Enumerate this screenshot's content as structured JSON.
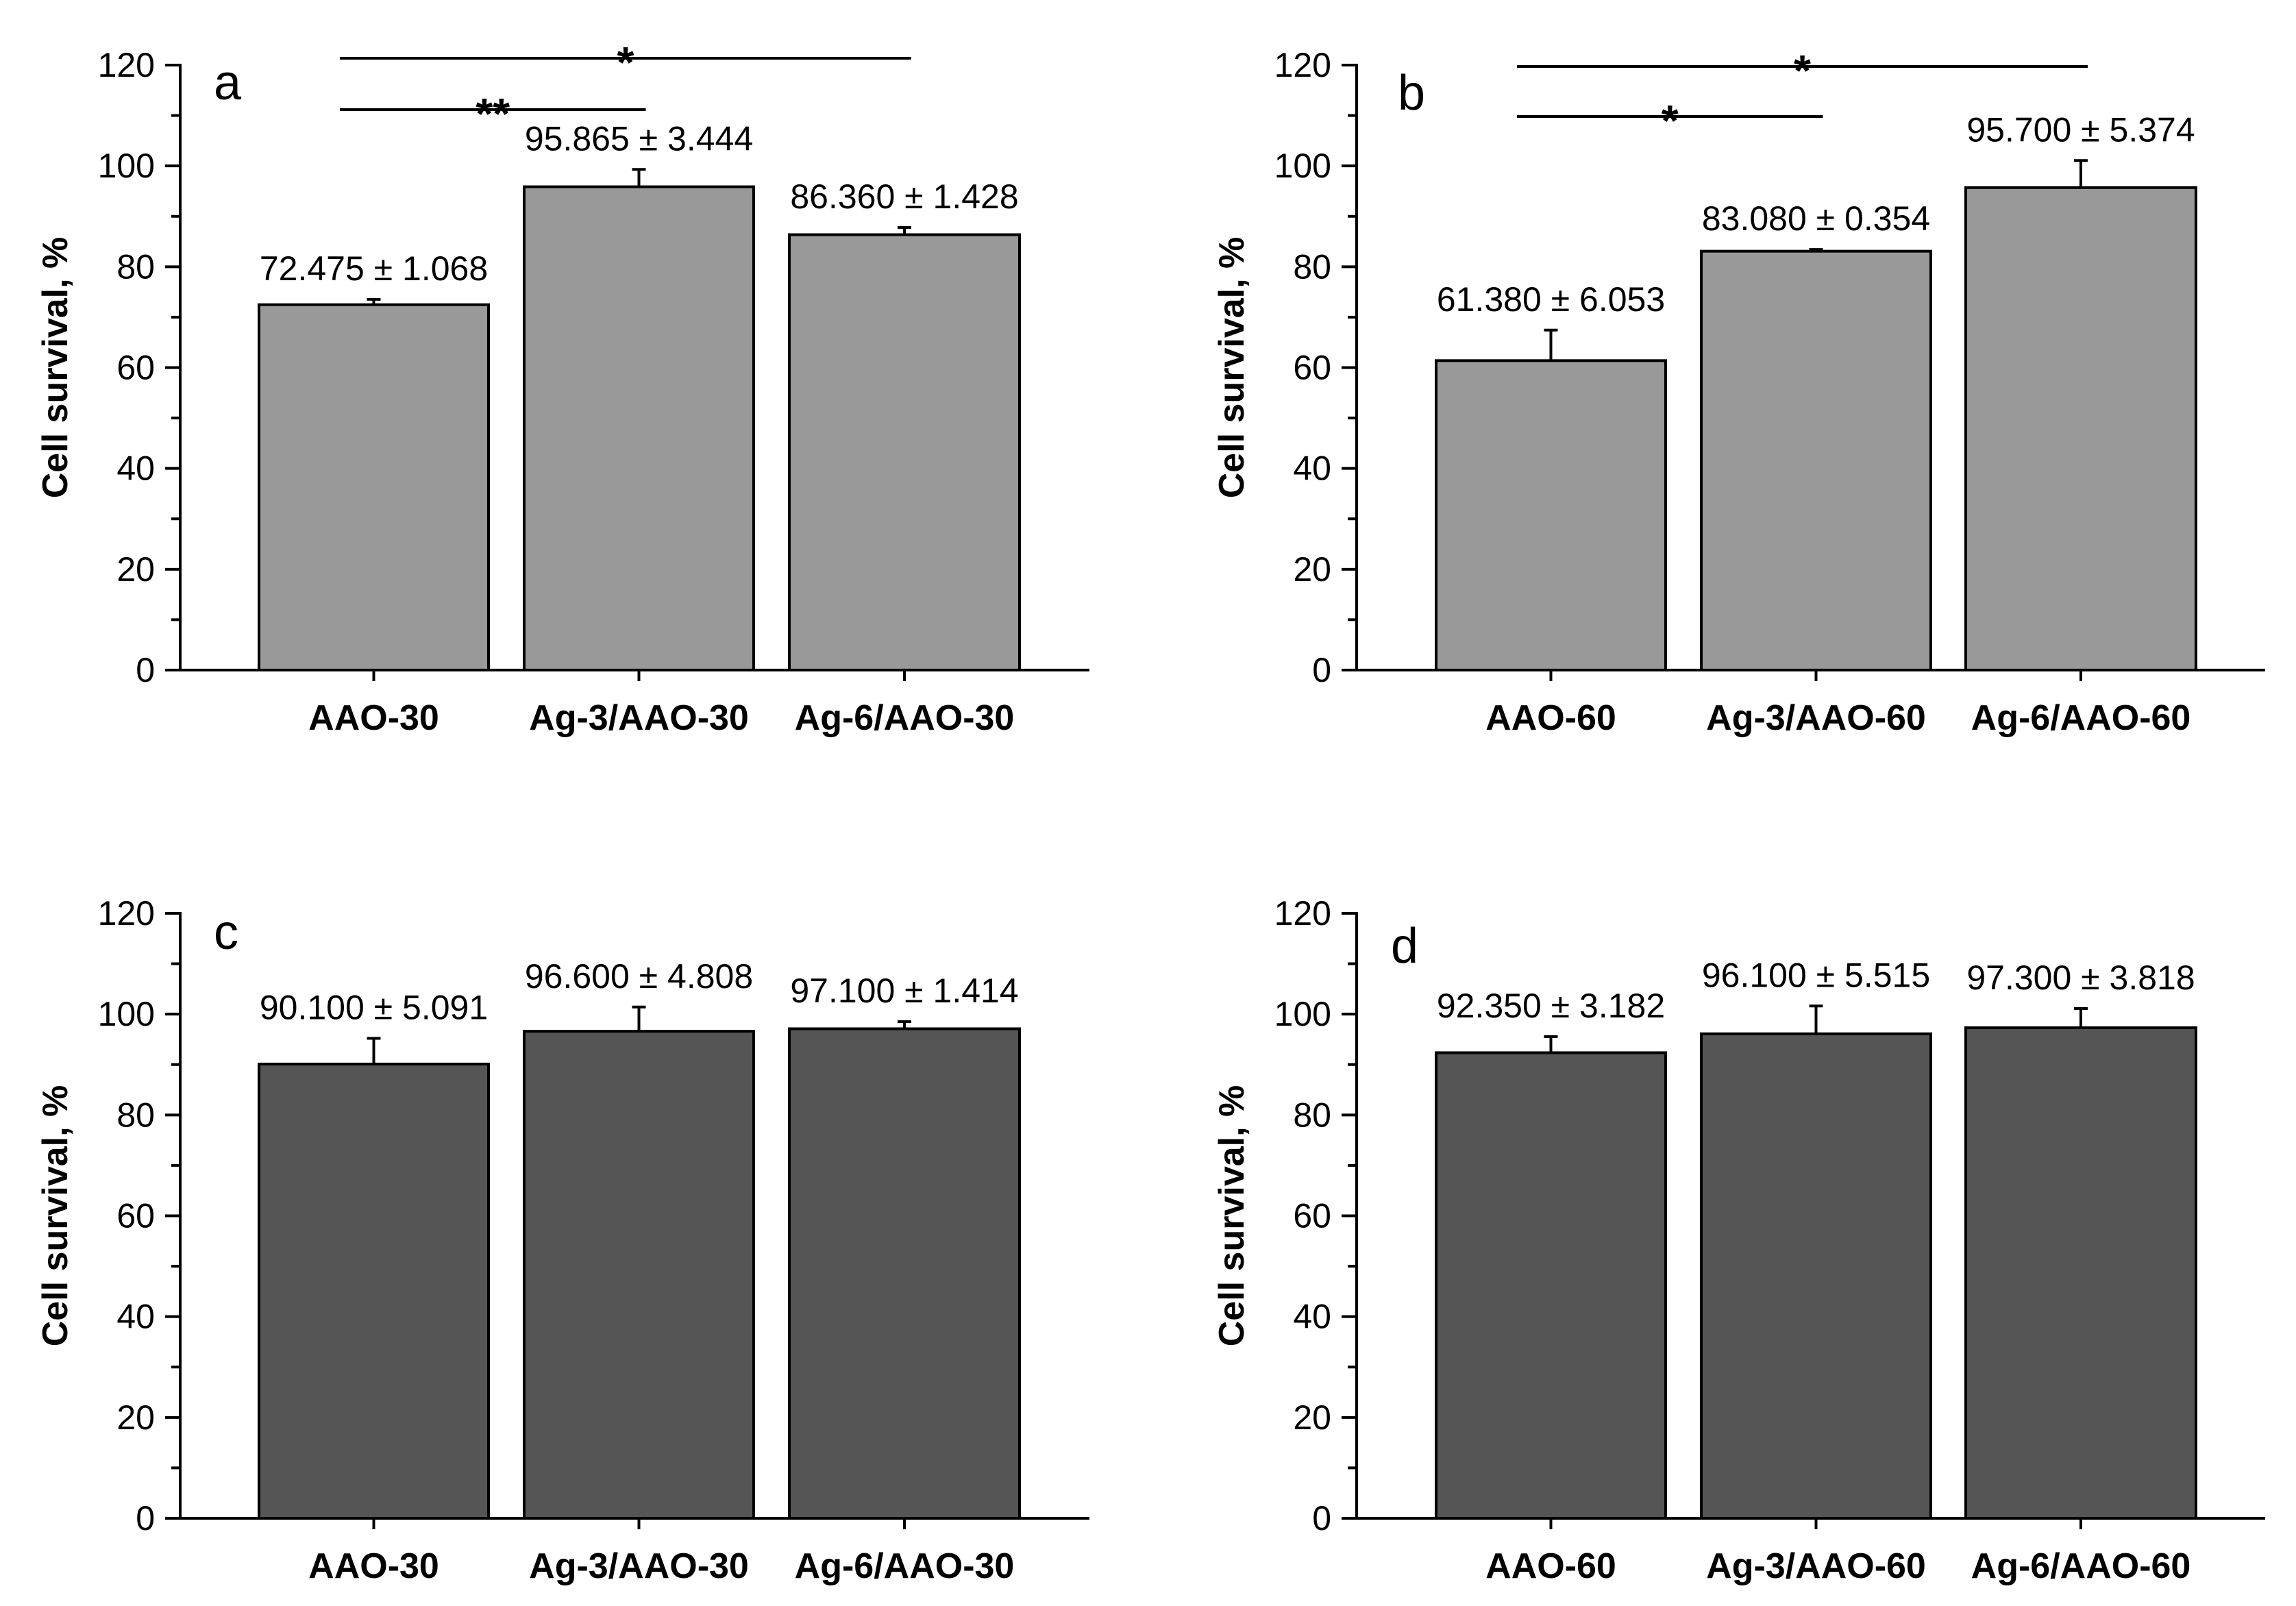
{
  "chart_data": [
    {
      "type": "bar",
      "panel": "a",
      "ylabel": "Cell survival, %",
      "ylim": [
        0,
        120
      ],
      "yticks": [
        0,
        20,
        40,
        60,
        80,
        100,
        120
      ],
      "bar_color": "#999999",
      "categories": [
        "AAO-30",
        "Ag-3/AAO-30",
        "Ag-6/AAO-30"
      ],
      "values": [
        72.475,
        95.865,
        86.36
      ],
      "errors": [
        1.068,
        3.444,
        1.428
      ],
      "labels": [
        "72.475 ± 1.068",
        "95.865 ± 3.444",
        "86.360 ± 1.428"
      ],
      "significance": [
        {
          "from": 0,
          "to": 2,
          "label": "*"
        },
        {
          "from": 0,
          "to": 1,
          "label": "**"
        }
      ]
    },
    {
      "type": "bar",
      "panel": "b",
      "ylabel": "Cell survival, %",
      "ylim": [
        0,
        120
      ],
      "yticks": [
        0,
        20,
        40,
        60,
        80,
        100,
        120
      ],
      "bar_color": "#999999",
      "categories": [
        "AAO-60",
        "Ag-3/AAO-60",
        "Ag-6/AAO-60"
      ],
      "values": [
        61.38,
        83.08,
        95.7
      ],
      "errors": [
        6.053,
        0.354,
        5.374
      ],
      "labels": [
        "61.380 ± 6.053",
        "83.080 ± 0.354",
        "95.700 ± 5.374"
      ],
      "significance": [
        {
          "from": 0,
          "to": 2,
          "label": "*"
        },
        {
          "from": 0,
          "to": 1,
          "label": "*"
        }
      ]
    },
    {
      "type": "bar",
      "panel": "c",
      "ylabel": "Cell survival, %",
      "ylim": [
        0,
        120
      ],
      "yticks": [
        0,
        20,
        40,
        60,
        80,
        100,
        120
      ],
      "bar_color": "#555555",
      "categories": [
        "AAO-30",
        "Ag-3/AAO-30",
        "Ag-6/AAO-30"
      ],
      "values": [
        90.1,
        96.6,
        97.1
      ],
      "errors": [
        5.091,
        4.808,
        1.414
      ],
      "labels": [
        "90.100 ± 5.091",
        "96.600 ± 4.808",
        "97.100 ± 1.414"
      ],
      "significance": []
    },
    {
      "type": "bar",
      "panel": "d",
      "ylabel": "Cell survival, %",
      "ylim": [
        0,
        120
      ],
      "yticks": [
        0,
        20,
        40,
        60,
        80,
        100,
        120
      ],
      "bar_color": "#555555",
      "categories": [
        "AAO-60",
        "Ag-3/AAO-60",
        "Ag-6/AAO-60"
      ],
      "values": [
        92.35,
        96.1,
        97.3
      ],
      "errors": [
        3.182,
        5.515,
        3.818
      ],
      "labels": [
        "92.350 ± 3.182",
        "96.100 ± 5.515",
        "97.300 ± 3.818"
      ],
      "significance": []
    }
  ]
}
